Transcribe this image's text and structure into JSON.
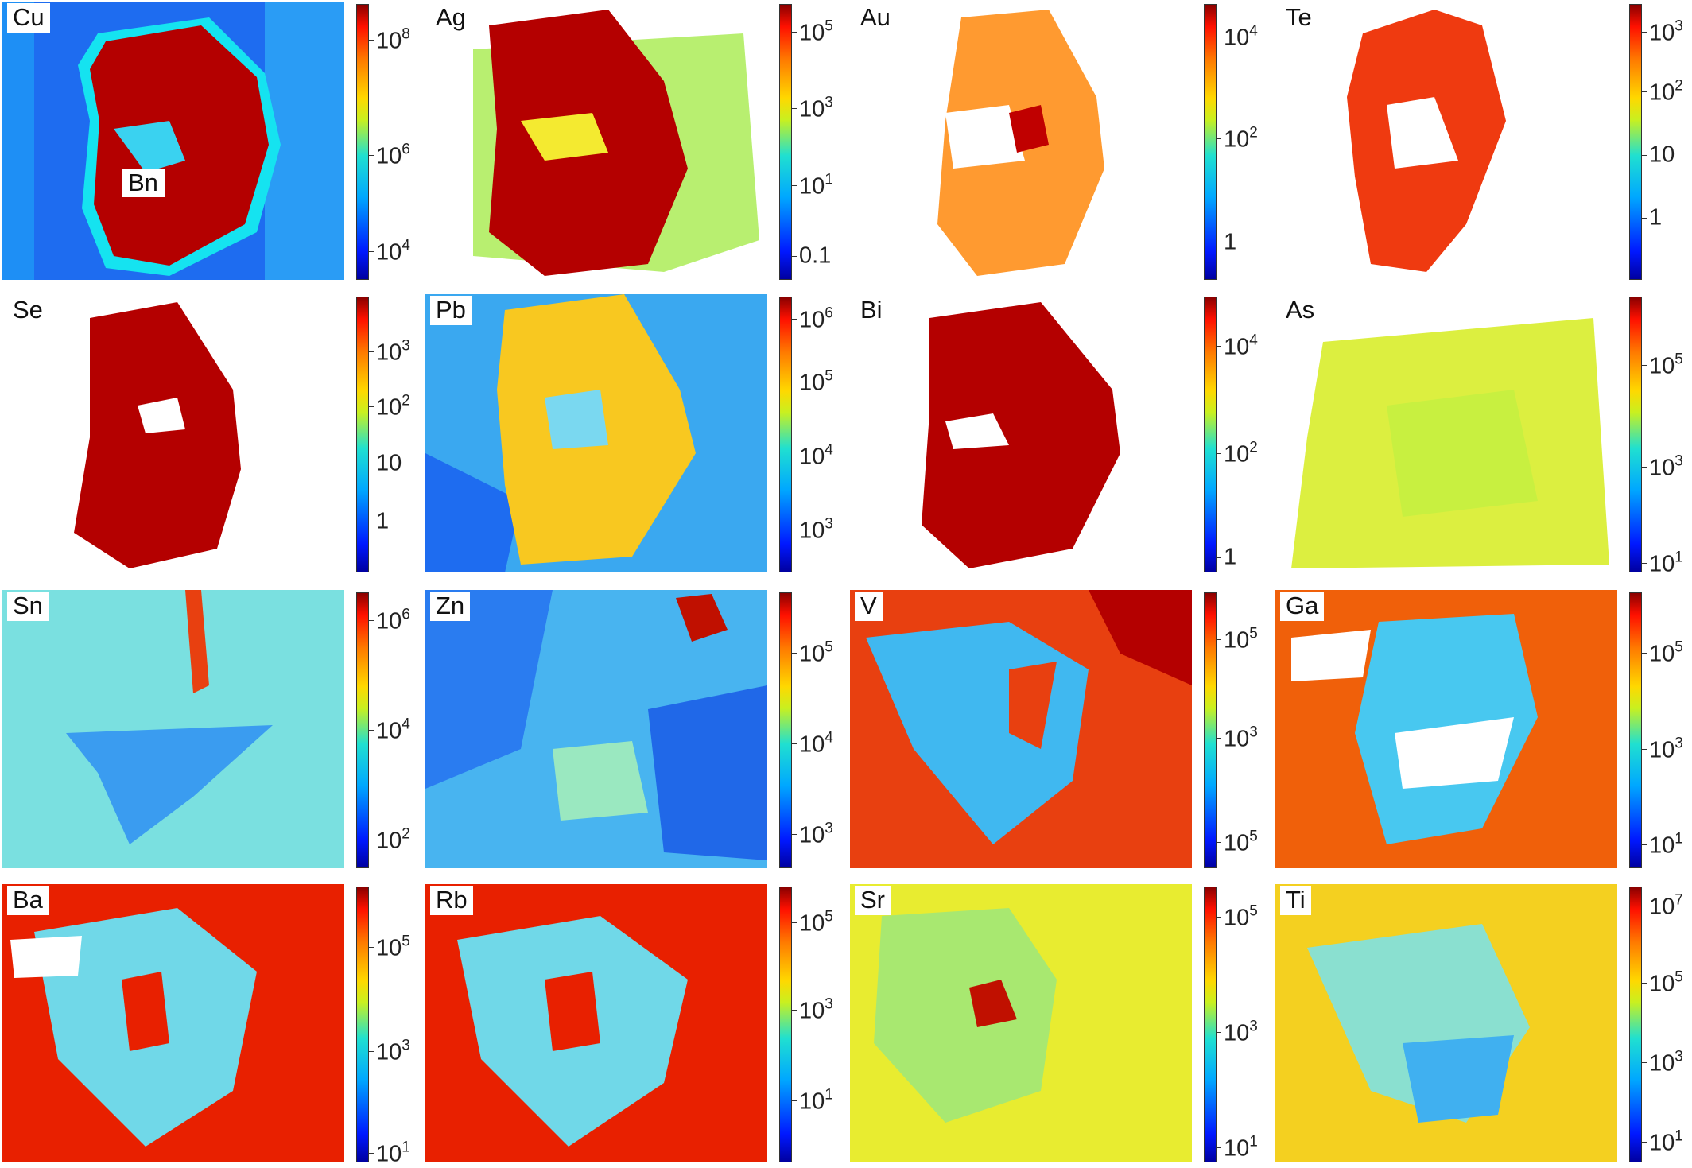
{
  "colormap": [
    "#0000a0",
    "#0018ff",
    "#00a8ff",
    "#20e0d0",
    "#c8f020",
    "#ffd800",
    "#ff7a00",
    "#ff1000",
    "#8a0000"
  ],
  "mineral_label": "Bn",
  "panels": [
    {
      "element": "Cu",
      "ticks": [
        {
          "base": "10",
          "exp": "8",
          "pos": 0.13
        },
        {
          "base": "10",
          "exp": "6",
          "pos": 0.55
        },
        {
          "base": "10",
          "exp": "4",
          "pos": 0.9
        }
      ]
    },
    {
      "element": "Ag",
      "ticks": [
        {
          "base": "10",
          "exp": "5",
          "pos": 0.1
        },
        {
          "base": "10",
          "exp": "3",
          "pos": 0.38
        },
        {
          "base": "10",
          "exp": "1",
          "pos": 0.66
        },
        {
          "base": "0.1",
          "exp": "",
          "pos": 0.92
        }
      ]
    },
    {
      "element": "Au",
      "ticks": [
        {
          "base": "10",
          "exp": "4",
          "pos": 0.12
        },
        {
          "base": "10",
          "exp": "2",
          "pos": 0.49
        },
        {
          "base": "1",
          "exp": "",
          "pos": 0.87
        }
      ]
    },
    {
      "element": "Te",
      "ticks": [
        {
          "base": "10",
          "exp": "3",
          "pos": 0.1
        },
        {
          "base": "10",
          "exp": "2",
          "pos": 0.32
        },
        {
          "base": "10",
          "exp": "",
          "pos": 0.55
        },
        {
          "base": "1",
          "exp": "",
          "pos": 0.78
        }
      ]
    },
    {
      "element": "Se",
      "ticks": [
        {
          "base": "10",
          "exp": "3",
          "pos": 0.2
        },
        {
          "base": "10",
          "exp": "2",
          "pos": 0.4
        },
        {
          "base": "10",
          "exp": "",
          "pos": 0.61
        },
        {
          "base": "1",
          "exp": "",
          "pos": 0.82
        }
      ]
    },
    {
      "element": "Pb",
      "ticks": [
        {
          "base": "10",
          "exp": "6",
          "pos": 0.08
        },
        {
          "base": "10",
          "exp": "5",
          "pos": 0.31
        },
        {
          "base": "10",
          "exp": "4",
          "pos": 0.58
        },
        {
          "base": "10",
          "exp": "3",
          "pos": 0.85
        }
      ]
    },
    {
      "element": "Bi",
      "ticks": [
        {
          "base": "10",
          "exp": "4",
          "pos": 0.18
        },
        {
          "base": "10",
          "exp": "2",
          "pos": 0.57
        },
        {
          "base": "1",
          "exp": "",
          "pos": 0.95
        }
      ]
    },
    {
      "element": "As",
      "ticks": [
        {
          "base": "10",
          "exp": "5",
          "pos": 0.25
        },
        {
          "base": "10",
          "exp": "3",
          "pos": 0.62
        },
        {
          "base": "10",
          "exp": "1",
          "pos": 0.97
        }
      ]
    },
    {
      "element": "Sn",
      "ticks": [
        {
          "base": "10",
          "exp": "6",
          "pos": 0.1
        },
        {
          "base": "10",
          "exp": "4",
          "pos": 0.5
        },
        {
          "base": "10",
          "exp": "2",
          "pos": 0.9
        }
      ]
    },
    {
      "element": "Zn",
      "ticks": [
        {
          "base": "10",
          "exp": "5",
          "pos": 0.22
        },
        {
          "base": "10",
          "exp": "4",
          "pos": 0.55
        },
        {
          "base": "10",
          "exp": "3",
          "pos": 0.88
        }
      ]
    },
    {
      "element": "V",
      "ticks": [
        {
          "base": "10",
          "exp": "5",
          "pos": 0.17
        },
        {
          "base": "10",
          "exp": "3",
          "pos": 0.53
        },
        {
          "base": "10",
          "exp": "5",
          "pos": 0.91
        }
      ]
    },
    {
      "element": "Ga",
      "ticks": [
        {
          "base": "10",
          "exp": "5",
          "pos": 0.22
        },
        {
          "base": "10",
          "exp": "3",
          "pos": 0.57
        },
        {
          "base": "10",
          "exp": "1",
          "pos": 0.92
        }
      ]
    },
    {
      "element": "Ba",
      "ticks": [
        {
          "base": "10",
          "exp": "5",
          "pos": 0.22
        },
        {
          "base": "10",
          "exp": "3",
          "pos": 0.6
        },
        {
          "base": "10",
          "exp": "1",
          "pos": 0.97
        }
      ]
    },
    {
      "element": "Rb",
      "ticks": [
        {
          "base": "10",
          "exp": "5",
          "pos": 0.13
        },
        {
          "base": "10",
          "exp": "3",
          "pos": 0.45
        },
        {
          "base": "10",
          "exp": "1",
          "pos": 0.78
        }
      ]
    },
    {
      "element": "Sr",
      "ticks": [
        {
          "base": "10",
          "exp": "5",
          "pos": 0.11
        },
        {
          "base": "10",
          "exp": "3",
          "pos": 0.53
        },
        {
          "base": "10",
          "exp": "1",
          "pos": 0.95
        }
      ]
    },
    {
      "element": "Ti",
      "ticks": [
        {
          "base": "10",
          "exp": "7",
          "pos": 0.07
        },
        {
          "base": "10",
          "exp": "5",
          "pos": 0.35
        },
        {
          "base": "10",
          "exp": "3",
          "pos": 0.64
        },
        {
          "base": "10",
          "exp": "1",
          "pos": 0.93
        }
      ]
    }
  ]
}
